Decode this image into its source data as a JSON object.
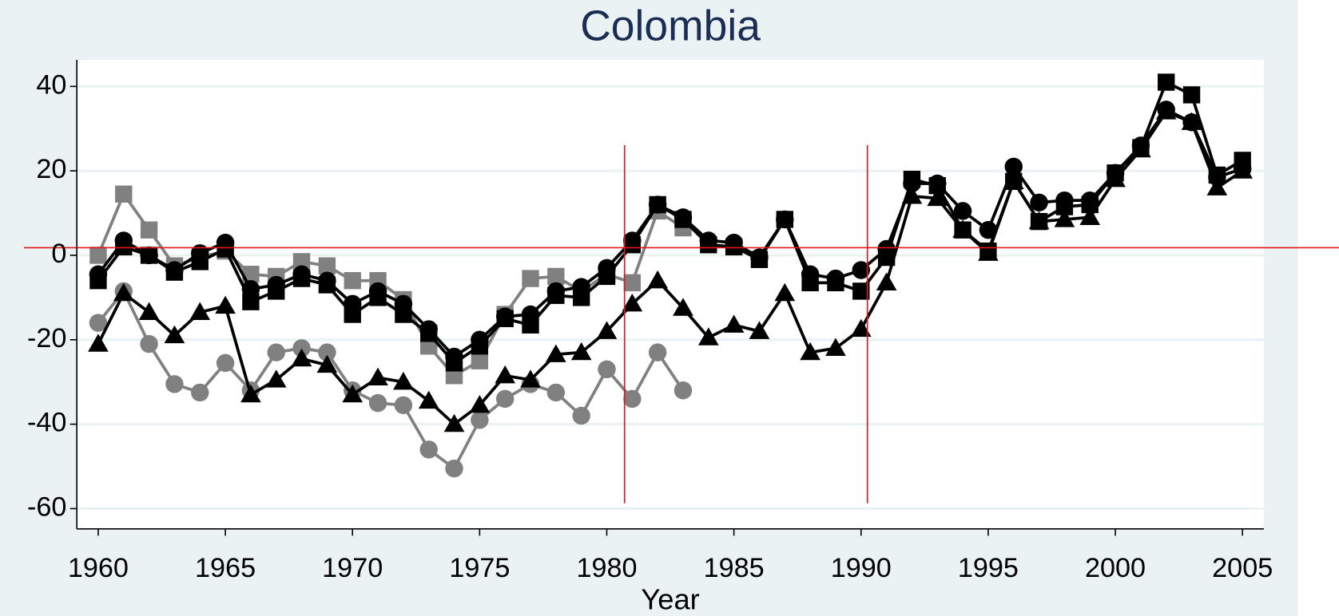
{
  "chart_data": {
    "type": "line",
    "title": "Colombia",
    "x_label": "Year",
    "x": [
      1960,
      1961,
      1962,
      1963,
      1964,
      1965,
      1966,
      1967,
      1968,
      1969,
      1970,
      1971,
      1972,
      1973,
      1974,
      1975,
      1976,
      1977,
      1978,
      1979,
      1980,
      1981,
      1982,
      1983,
      1984,
      1985,
      1986,
      1987,
      1988,
      1989,
      1990,
      1991,
      1992,
      1993,
      1994,
      1995,
      1996,
      1997,
      1998,
      1999,
      2000,
      2001,
      2002,
      2003,
      2004,
      2005
    ],
    "xlim": [
      1959.16,
      2005.84
    ],
    "xticks": [
      1960,
      1965,
      1970,
      1975,
      1980,
      1985,
      1990,
      1995,
      2000,
      2005
    ],
    "ylim": [
      -64.8,
      46.3
    ],
    "yticks": [
      -60,
      -40,
      -20,
      0,
      20,
      40
    ],
    "grid": true,
    "reference_lines": {
      "color": "#e8141b",
      "y": [
        1.8
      ],
      "x": [
        1980.7,
        1990.25
      ]
    },
    "series": [
      {
        "color": "#808080",
        "marker": "square",
        "values": [
          0,
          14.5,
          6,
          -2.5,
          -0.5,
          1,
          -4.5,
          -5,
          -1.5,
          -2.5,
          -6,
          -6,
          -10.5,
          -21.5,
          -28.5,
          -25,
          -14,
          -5.5,
          -5,
          -8.5,
          -4.5,
          -6.5,
          10.5,
          6.5,
          null,
          null,
          null,
          null,
          null,
          null,
          null,
          null,
          null,
          null,
          null,
          null,
          null,
          null,
          null,
          null,
          null,
          null,
          null,
          null,
          null,
          null
        ]
      },
      {
        "color": "#808080",
        "marker": "circle",
        "values": [
          -16,
          -8.5,
          -21,
          -30.5,
          -32.5,
          -25.5,
          -32,
          -23,
          -22,
          -23,
          -32,
          -35,
          -35.5,
          -46,
          -50.5,
          -39,
          -34,
          -30.5,
          -32.5,
          -38,
          -27,
          -34,
          -23,
          -32,
          null,
          null,
          null,
          null,
          null,
          null,
          null,
          null,
          null,
          null,
          null,
          null,
          null,
          null,
          null,
          null,
          null,
          null,
          null,
          null,
          null,
          null
        ]
      },
      {
        "color": "#000000",
        "marker": "triangle",
        "values": [
          -21,
          -9,
          -13.5,
          -19,
          -13.5,
          -12,
          -33,
          -29.5,
          -24.5,
          -26,
          -33,
          -29,
          -30,
          -34.5,
          -40,
          -35.5,
          -28.5,
          -29.5,
          -23.5,
          -23,
          -18,
          -11.5,
          -6,
          -12.5,
          -19.5,
          -16.5,
          -18,
          -9,
          -23,
          -22,
          -17.5,
          -6.5,
          14,
          13.5,
          6,
          0.5,
          17.5,
          8,
          8.5,
          9,
          18,
          25,
          34,
          31.5,
          16,
          20
        ]
      },
      {
        "color": "#000000",
        "marker": "circle",
        "values": [
          -4.5,
          3.5,
          0,
          -3.5,
          0.5,
          3,
          -8,
          -7,
          -4.5,
          -6,
          -11.5,
          -8.5,
          -11.5,
          -17.5,
          -24,
          -20,
          -14.5,
          -14,
          -8.5,
          -7.5,
          -3,
          3.5,
          12,
          9,
          3.5,
          3,
          -0.5,
          8.5,
          -4.5,
          -5.5,
          -3.5,
          1.5,
          17,
          17,
          10.5,
          6,
          21,
          12.5,
          13,
          13,
          19.5,
          26,
          34.5,
          31.5,
          18.5,
          20.5
        ]
      },
      {
        "color": "#000000",
        "marker": "square",
        "values": [
          -6,
          2,
          0,
          -4,
          -1.5,
          1.5,
          -11,
          -8.5,
          -5.5,
          -7,
          -14,
          -10,
          -14,
          -18.5,
          -25.5,
          -21.5,
          -15,
          -16.5,
          -9.5,
          -10,
          -5,
          2.5,
          12,
          8.5,
          2.5,
          2,
          -1,
          8.5,
          -6.5,
          -6.5,
          -8.5,
          -0.5,
          18,
          16.5,
          6,
          1,
          17.5,
          8,
          11.5,
          12,
          19.5,
          25.5,
          41,
          38,
          19,
          22.5
        ]
      }
    ]
  }
}
